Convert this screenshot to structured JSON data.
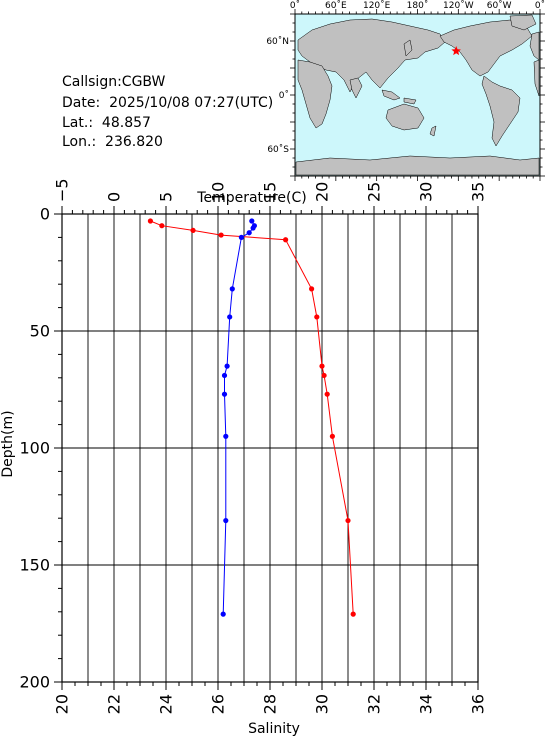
{
  "station": {
    "callsign": "Callsign:CGBW",
    "date": "Date:  2025/10/08 07:27(UTC)",
    "lat": "Lat.:  48.857",
    "lon": "Lon.:  236.820"
  },
  "map": {
    "lon_labels": [
      "0˚",
      "60˚E",
      "120˚E",
      "180˚",
      "120˚W",
      "60˚W",
      "0˚"
    ],
    "lat_labels": [
      "60˚N",
      "0˚",
      "60˚S"
    ],
    "ocean_color": "#cdf7fb",
    "land_color": "#c0c0c0",
    "marker": {
      "lat": 48.857,
      "lon": 236.82,
      "color": "#ff0000",
      "shape": "star"
    }
  },
  "chart_data": {
    "type": "line",
    "top_axis_label": "Temperature(C)",
    "bottom_axis_label": "Salinity",
    "y_axis_label": "Depth(m)",
    "temperature_range": [
      -5,
      35
    ],
    "salinity_range": [
      20,
      36
    ],
    "depth_range": [
      0,
      200
    ],
    "y_inverted": true,
    "grid": true,
    "temperature_ticks": [
      "−5",
      "0",
      "5",
      "10",
      "15",
      "20",
      "25",
      "30",
      "35"
    ],
    "salinity_ticks": [
      "20",
      "22",
      "24",
      "26",
      "28",
      "30",
      "32",
      "34",
      "36"
    ],
    "depth_ticks": [
      "0",
      "50",
      "100",
      "150",
      "200"
    ],
    "series": [
      {
        "variable": "temperature",
        "color": "#ff0000",
        "points": [
          {
            "value": 3.5,
            "depth": 3
          },
          {
            "value": 4.6,
            "depth": 5
          },
          {
            "value": 7.6,
            "depth": 7
          },
          {
            "value": 10.3,
            "depth": 9
          },
          {
            "value": 16.5,
            "depth": 11
          },
          {
            "value": 19.0,
            "depth": 32
          },
          {
            "value": 19.5,
            "depth": 44
          },
          {
            "value": 20.0,
            "depth": 65
          },
          {
            "value": 20.2,
            "depth": 69
          },
          {
            "value": 20.5,
            "depth": 77
          },
          {
            "value": 21.0,
            "depth": 95
          },
          {
            "value": 22.5,
            "depth": 131
          },
          {
            "value": 23.0,
            "depth": 171
          }
        ]
      },
      {
        "variable": "salinity",
        "color": "#0000ff",
        "points": [
          {
            "value": 27.3,
            "depth": 3
          },
          {
            "value": 27.4,
            "depth": 5
          },
          {
            "value": 27.35,
            "depth": 6
          },
          {
            "value": 27.2,
            "depth": 8
          },
          {
            "value": 26.9,
            "depth": 10
          },
          {
            "value": 26.55,
            "depth": 32
          },
          {
            "value": 26.45,
            "depth": 44
          },
          {
            "value": 26.35,
            "depth": 65
          },
          {
            "value": 26.25,
            "depth": 69
          },
          {
            "value": 26.25,
            "depth": 77
          },
          {
            "value": 26.3,
            "depth": 95
          },
          {
            "value": 26.3,
            "depth": 131
          },
          {
            "value": 26.2,
            "depth": 171
          }
        ]
      }
    ]
  }
}
